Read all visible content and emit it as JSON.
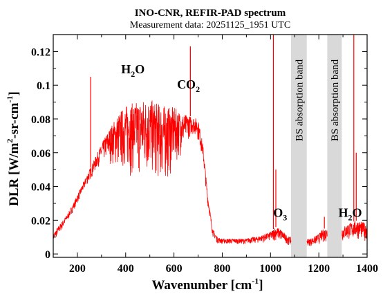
{
  "chart_data": {
    "type": "line",
    "title": "INO-CNR, REFIR-PAD spectrum",
    "subtitle": "Measurement data: 20251125_1951 UTC",
    "xlabel": "Wavenumber [cm",
    "xlabel_sup": "-1",
    "xlabel_tail": "]",
    "ylabel": "DLR [W/m",
    "ylabel_sup1": "2",
    "ylabel_mid": "-sr-cm",
    "ylabel_sup2": "-1",
    "ylabel_tail": "]",
    "xlim": [
      100,
      1400
    ],
    "ylim": [
      -0.002,
      0.13
    ],
    "x_ticks": [
      200,
      400,
      600,
      800,
      1000,
      1200,
      1400
    ],
    "y_ticks": [
      0,
      0.02,
      0.04,
      0.06,
      0.08,
      0.1,
      0.12
    ],
    "y_tick_labels": [
      "0",
      "0.02",
      "0.04",
      "0.06",
      "0.08",
      "0.1",
      "0.12"
    ],
    "grid": false,
    "series_color": "#ff0000",
    "band_color": "#d9d9d9",
    "bands": [
      {
        "x0": 1085,
        "x1": 1150,
        "label": "BS absorption band"
      },
      {
        "x0": 1235,
        "x1": 1295,
        "label": "BS absorption band"
      }
    ],
    "annotations": [
      {
        "main": "H",
        "sub": "2",
        "tail": "O",
        "x": 430,
        "y": 0.107
      },
      {
        "main": "CO",
        "sub": "2",
        "tail": "",
        "x": 660,
        "y": 0.098
      },
      {
        "main": "O",
        "sub": "3",
        "tail": "",
        "x": 1040,
        "y": 0.022
      },
      {
        "main": "H",
        "sub": "2",
        "tail": "O",
        "x": 1330,
        "y": 0.022
      }
    ],
    "series": [
      {
        "x": [
          100,
          120,
          140,
          160,
          180,
          200,
          220,
          240,
          260,
          280,
          300,
          320,
          340,
          360,
          380,
          400,
          420,
          440,
          460,
          480,
          500,
          520,
          540,
          560,
          580,
          600,
          620,
          640,
          660,
          680,
          700,
          720,
          740,
          760,
          780,
          800,
          820,
          840,
          860,
          880,
          900,
          920,
          940,
          960,
          980,
          1000,
          1020,
          1040,
          1060,
          1080,
          1160,
          1180,
          1200,
          1220,
          1300,
          1320,
          1340,
          1360,
          1380,
          1400
        ],
        "y": [
          0.012,
          0.016,
          0.02,
          0.024,
          0.029,
          0.035,
          0.041,
          0.047,
          0.053,
          0.059,
          0.065,
          0.071,
          0.076,
          0.081,
          0.085,
          0.088,
          0.089,
          0.09,
          0.091,
          0.092,
          0.092,
          0.09,
          0.089,
          0.088,
          0.087,
          0.087,
          0.085,
          0.083,
          0.082,
          0.081,
          0.08,
          0.065,
          0.035,
          0.015,
          0.01,
          0.009,
          0.009,
          0.009,
          0.009,
          0.009,
          0.009,
          0.01,
          0.01,
          0.011,
          0.012,
          0.013,
          0.016,
          0.015,
          0.012,
          0.01,
          0.009,
          0.01,
          0.012,
          0.015,
          0.016,
          0.018,
          0.019,
          0.02,
          0.019,
          0.018
        ],
        "lower": [
          0.004,
          0.008,
          0.012,
          0.017,
          0.022,
          0.027,
          0.032,
          0.037,
          0.041,
          0.045,
          0.048,
          0.046,
          0.04,
          0.032,
          0.028,
          0.025,
          0.022,
          0.02,
          0.018,
          0.017,
          0.018,
          0.017,
          0.015,
          0.014,
          0.02,
          0.03,
          0.04,
          0.05,
          0.06,
          0.065,
          0.06,
          0.05,
          0.025,
          0.008,
          0.004,
          0.004,
          0.004,
          0.004,
          0.004,
          0.004,
          0.004,
          0.004,
          0.004,
          0.004,
          0.004,
          0.004,
          0.003,
          0.003,
          0.003,
          0.002,
          0.002,
          0.002,
          0.002,
          0.002,
          0.002,
          0.002,
          0.002,
          0.002,
          0.002,
          0.002
        ],
        "spikes": [
          {
            "x": 255,
            "y": 0.105
          },
          {
            "x": 668,
            "y": 0.123
          },
          {
            "x": 1012,
            "y": 0.13
          },
          {
            "x": 1022,
            "y": 0.05
          },
          {
            "x": 1345,
            "y": 0.13
          },
          {
            "x": 1355,
            "y": 0.06
          },
          {
            "x": 1223,
            "y": 0.022
          }
        ]
      }
    ]
  }
}
